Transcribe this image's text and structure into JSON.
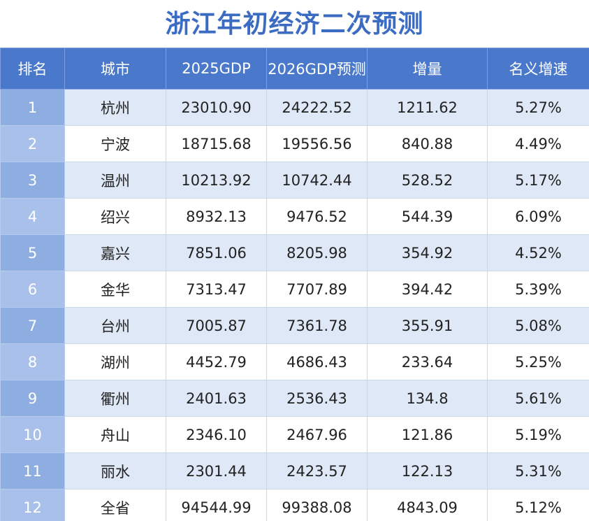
{
  "header": {
    "title": "浙江年初经济二次预测"
  },
  "table": {
    "columns": [
      "排名",
      "城市",
      "2025GDP",
      "2026GDP预测",
      "增量",
      "名义增速"
    ],
    "rows": [
      [
        "1",
        "杭州",
        "23010.90",
        "24222.52",
        "1211.62",
        "5.27%"
      ],
      [
        "2",
        "宁波",
        "18715.68",
        "19556.56",
        "840.88",
        "4.49%"
      ],
      [
        "3",
        "温州",
        "10213.92",
        "10742.44",
        "528.52",
        "5.17%"
      ],
      [
        "4",
        "绍兴",
        "8932.13",
        "9476.52",
        "544.39",
        "6.09%"
      ],
      [
        "5",
        "嘉兴",
        "7851.06",
        "8205.98",
        "354.92",
        "4.52%"
      ],
      [
        "6",
        "金华",
        "7313.47",
        "7707.89",
        "394.42",
        "5.39%"
      ],
      [
        "7",
        "台州",
        "7005.87",
        "7361.78",
        "355.91",
        "5.08%"
      ],
      [
        "8",
        "湖州",
        "4452.79",
        "4686.43",
        "233.64",
        "5.25%"
      ],
      [
        "9",
        "衢州",
        "2401.63",
        "2536.43",
        "134.8",
        "5.61%"
      ],
      [
        "10",
        "舟山",
        "2346.10",
        "2467.96",
        "121.86",
        "5.19%"
      ],
      [
        "11",
        "丽水",
        "2301.44",
        "2423.57",
        "122.13",
        "5.31%"
      ],
      [
        "12",
        "全省",
        "94544.99",
        "99388.08",
        "4843.09",
        "5.12%"
      ]
    ]
  }
}
